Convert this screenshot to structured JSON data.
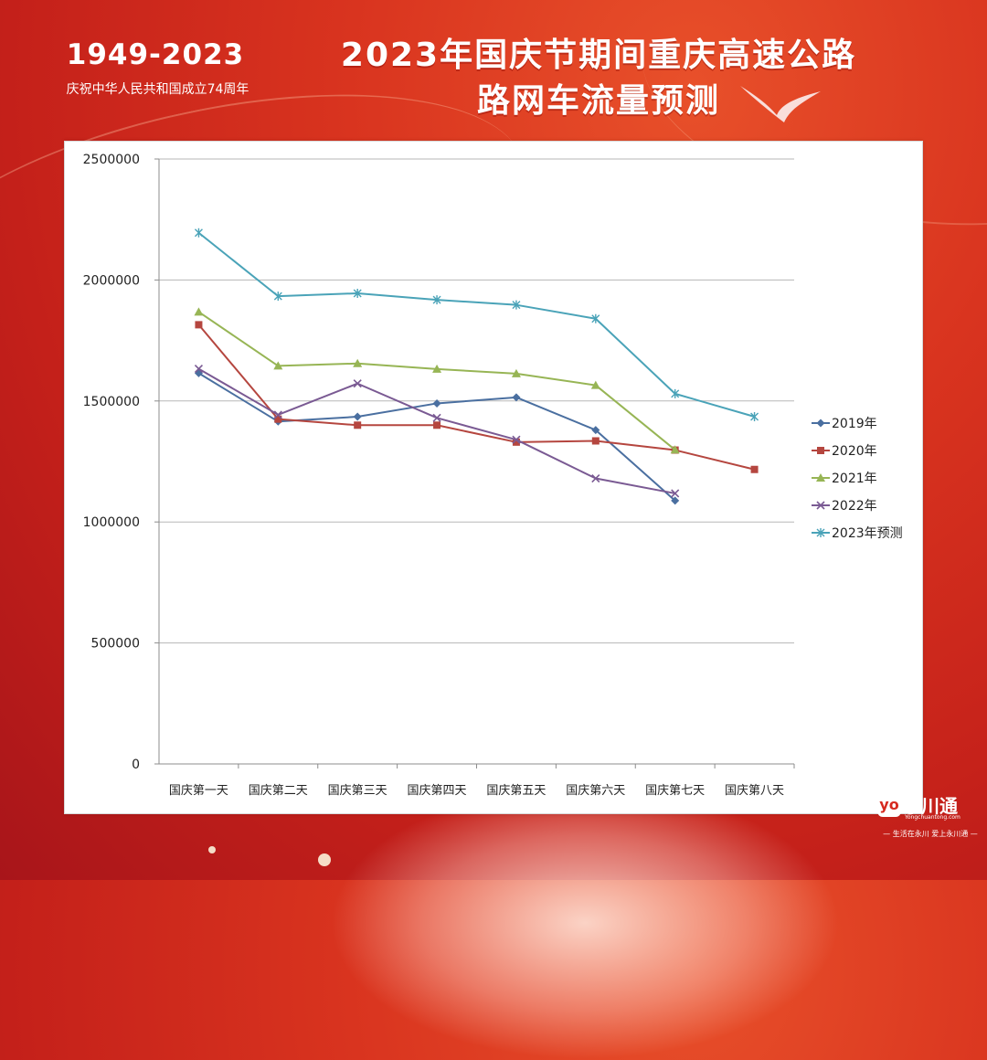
{
  "header": {
    "year_range": "1949-2023",
    "celebrate_text": "庆祝中华人民共和国成立74周年",
    "title_line1": "2023年国庆节期间重庆高速公路",
    "title_line2": "路网车流量预测"
  },
  "brand": {
    "mark": "yo",
    "name": "永川通",
    "url": "Yongchuantong.com",
    "slogan": "— 生活在永川  爱上永川通 —"
  },
  "colors": {
    "background": "#d9341f",
    "panel": "#ffffff",
    "grid": "#b7b7b7",
    "axis": "#8c8c8c"
  },
  "chart_data": {
    "type": "line",
    "title": "",
    "xlabel": "",
    "ylabel": "",
    "categories": [
      "国庆第一天",
      "国庆第二天",
      "国庆第三天",
      "国庆第四天",
      "国庆第五天",
      "国庆第六天",
      "国庆第七天",
      "国庆第八天"
    ],
    "ylim": [
      0,
      2500000
    ],
    "yticks": [
      0,
      500000,
      1000000,
      1500000,
      2000000,
      2500000
    ],
    "ytick_labels": [
      "0",
      "500000",
      "1000000",
      "1500000",
      "2000000",
      "2500000"
    ],
    "grid": true,
    "legend_position": "right",
    "series": [
      {
        "name": "2019年",
        "color": "#4a6fa0",
        "marker": "diamond",
        "values": [
          1615000,
          1415000,
          1435000,
          1490000,
          1515000,
          1380000,
          1088000,
          null
        ]
      },
      {
        "name": "2020年",
        "color": "#b5463f",
        "marker": "square",
        "values": [
          1815000,
          1425000,
          1400000,
          1400000,
          1330000,
          1335000,
          1297000,
          1217000
        ]
      },
      {
        "name": "2021年",
        "color": "#97b555",
        "marker": "triangle",
        "values": [
          1868000,
          1645000,
          1655000,
          1632000,
          1613000,
          1565000,
          1298000,
          null
        ]
      },
      {
        "name": "2022年",
        "color": "#7a5a93",
        "marker": "x",
        "values": [
          1633000,
          1443000,
          1572000,
          1430000,
          1340000,
          1180000,
          1118000,
          null
        ]
      },
      {
        "name": "2023年预测",
        "color": "#4aa3b8",
        "marker": "star",
        "values": [
          2195000,
          1933000,
          1945000,
          1918000,
          1897000,
          1840000,
          1530000,
          1435000
        ]
      }
    ]
  }
}
